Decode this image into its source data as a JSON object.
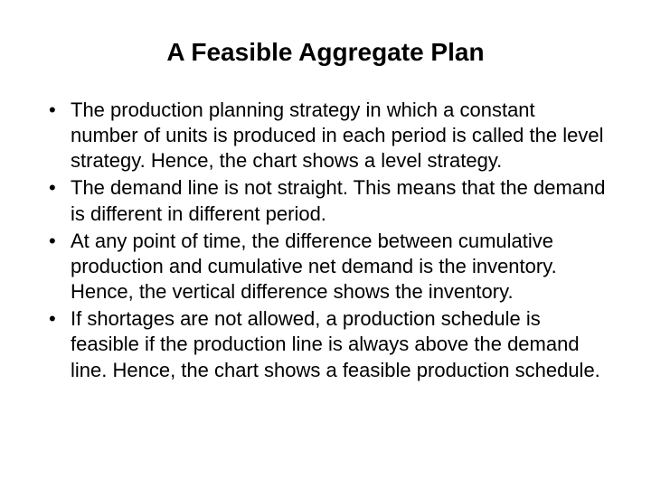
{
  "slide": {
    "title": "A Feasible Aggregate Plan",
    "bullets": [
      "The production planning strategy in which a constant number of units is produced in each period is called the level strategy. Hence, the chart shows a level strategy.",
      "The demand line is not straight. This means that the demand is different in different period.",
      "At any point of time, the difference between cumulative production and cumulative net demand is the inventory. Hence, the vertical difference shows the inventory.",
      "If shortages are not allowed, a production schedule is feasible if the production line is always above the demand line. Hence, the chart shows a feasible production schedule."
    ],
    "style": {
      "background_color": "#ffffff",
      "text_color": "#000000",
      "title_fontsize": 28,
      "title_fontweight": "bold",
      "body_fontsize": 22,
      "font_family": "Arial",
      "bullet_char": "•"
    }
  }
}
